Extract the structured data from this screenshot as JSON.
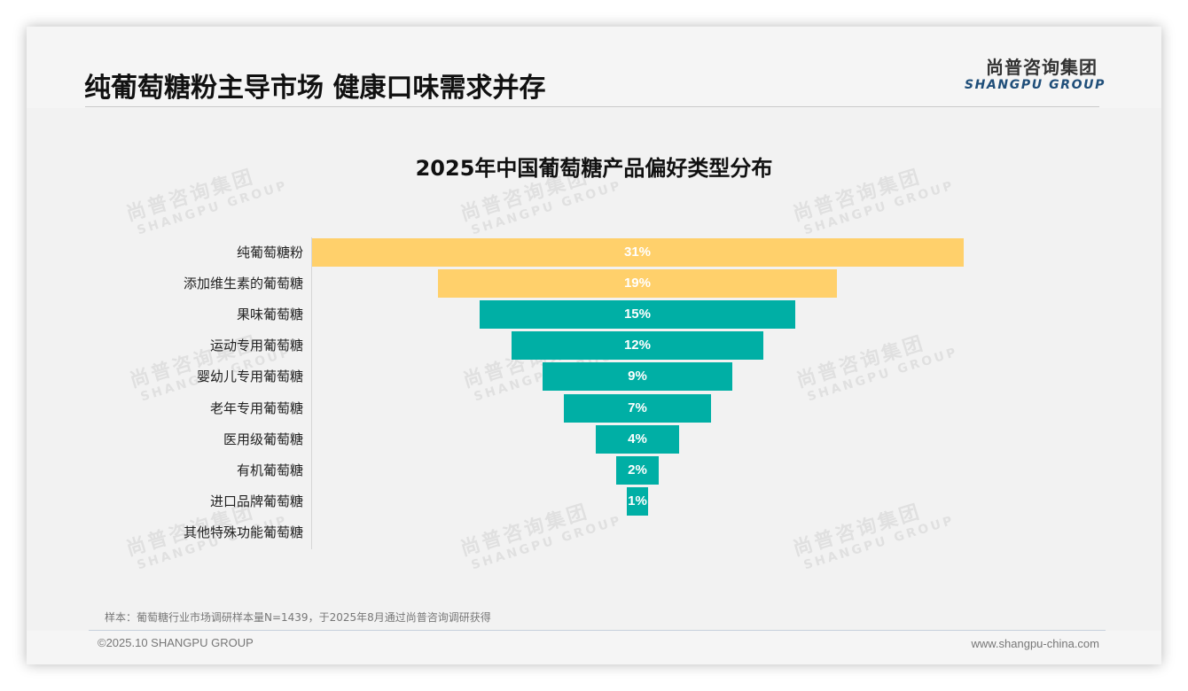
{
  "header": {
    "title": "纯葡萄糖粉主导市场 健康口味需求并存",
    "logo_cn": "尚普咨询集团",
    "logo_en": "SHANGPU GROUP"
  },
  "watermark": {
    "cn": "尚普咨询集团",
    "en": "SHANGPU GROUP"
  },
  "colors": {
    "highlight": "#FFD06B",
    "primary": "#00AFA5",
    "logo_en": "#1F4E79"
  },
  "chart_data": {
    "type": "bar",
    "orientation": "horizontal-funnel",
    "title": "2025年中国葡萄糖产品偏好类型分布",
    "categories": [
      "纯葡萄糖粉",
      "添加维生素的葡萄糖",
      "果味葡萄糖",
      "运动专用葡萄糖",
      "婴幼儿专用葡萄糖",
      "老年专用葡萄糖",
      "医用级葡萄糖",
      "有机葡萄糖",
      "进口品牌葡萄糖",
      "其他特殊功能葡萄糖"
    ],
    "values": [
      31,
      19,
      15,
      12,
      9,
      7,
      4,
      2,
      1,
      0
    ],
    "labels": [
      "31%",
      "19%",
      "15%",
      "12%",
      "9%",
      "7%",
      "4%",
      "2%",
      "1%",
      ""
    ],
    "unit": "%",
    "bar_colors": [
      "#FFD06B",
      "#FFD06B",
      "#00AFA5",
      "#00AFA5",
      "#00AFA5",
      "#00AFA5",
      "#00AFA5",
      "#00AFA5",
      "#00AFA5",
      "#00AFA5"
    ],
    "xlabel": "",
    "ylabel": "",
    "grid": false,
    "legend": null
  },
  "footer": {
    "note": "样本：葡萄糖行业市场调研样本量N=1439，于2025年8月通过尚普咨询调研获得",
    "copyright": "©2025.10 SHANGPU GROUP",
    "website": "www.shangpu-china.com"
  }
}
